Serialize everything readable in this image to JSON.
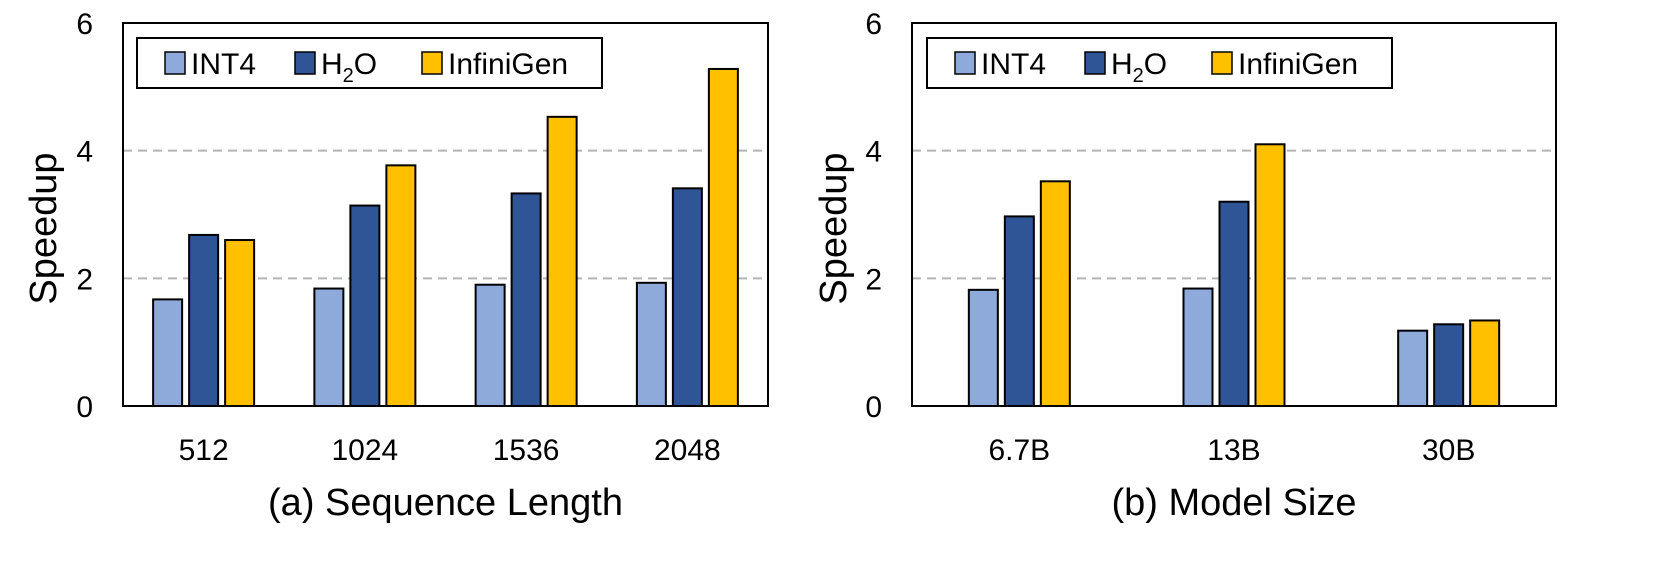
{
  "chart_data": [
    {
      "type": "bar",
      "title": "(a) Sequence Length",
      "xlabel": "",
      "ylabel": "Speedup",
      "ylim": [
        0,
        6
      ],
      "yticks": [
        0,
        2,
        4,
        6
      ],
      "grid": "horizontal dashed at 2 and 4",
      "legend_position": "top-left",
      "categories": [
        "512",
        "1024",
        "1536",
        "2048"
      ],
      "series": [
        {
          "name": "INT4",
          "color": "#8eaadb",
          "values": [
            1.67,
            1.84,
            1.9,
            1.93
          ]
        },
        {
          "name": "H2O",
          "color": "#2f5597",
          "values": [
            2.68,
            3.14,
            3.33,
            3.41
          ]
        },
        {
          "name": "InfiniGen",
          "color": "#ffc000",
          "values": [
            2.6,
            3.77,
            4.53,
            5.28
          ]
        }
      ]
    },
    {
      "type": "bar",
      "title": "(b) Model Size",
      "xlabel": "",
      "ylabel": "Speedup",
      "ylim": [
        0,
        6
      ],
      "yticks": [
        0,
        2,
        4,
        6
      ],
      "grid": "horizontal dashed at 2 and 4",
      "legend_position": "top-left",
      "categories": [
        "6.7B",
        "13B",
        "30B"
      ],
      "series": [
        {
          "name": "INT4",
          "color": "#8eaadb",
          "values": [
            1.82,
            1.84,
            1.18
          ]
        },
        {
          "name": "H2O",
          "color": "#2f5597",
          "values": [
            2.97,
            3.2,
            1.28
          ]
        },
        {
          "name": "InfiniGen",
          "color": "#ffc000",
          "values": [
            3.52,
            4.1,
            1.34
          ]
        }
      ]
    }
  ]
}
